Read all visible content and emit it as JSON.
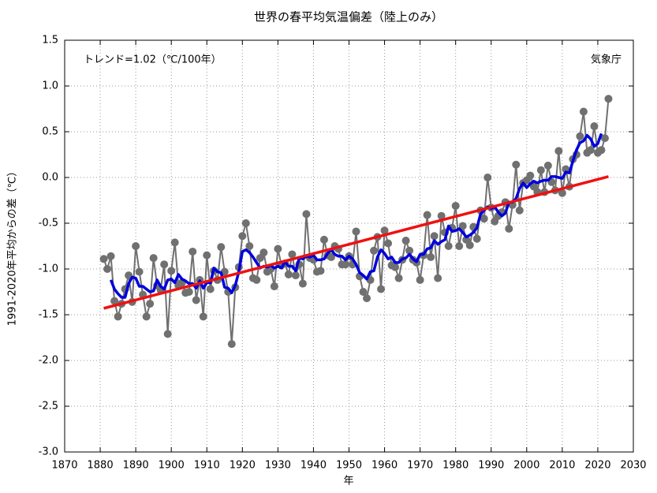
{
  "chart_data": {
    "type": "line",
    "title": "世界の春平均気温偏差（陸上のみ）",
    "xlabel": "年",
    "ylabel": "1991-2020年平均からの差（℃）",
    "annotations": [
      "トレンド=1.02（℃/100年）",
      "気象庁"
    ],
    "x": [
      1881,
      1882,
      1883,
      1884,
      1885,
      1886,
      1887,
      1888,
      1889,
      1890,
      1891,
      1892,
      1893,
      1894,
      1895,
      1896,
      1897,
      1898,
      1899,
      1900,
      1901,
      1902,
      1903,
      1904,
      1905,
      1906,
      1907,
      1908,
      1909,
      1910,
      1911,
      1912,
      1913,
      1914,
      1915,
      1916,
      1917,
      1918,
      1919,
      1920,
      1921,
      1922,
      1923,
      1924,
      1925,
      1926,
      1927,
      1928,
      1929,
      1930,
      1931,
      1932,
      1933,
      1934,
      1935,
      1936,
      1937,
      1938,
      1939,
      1940,
      1941,
      1942,
      1943,
      1944,
      1945,
      1946,
      1947,
      1948,
      1949,
      1950,
      1951,
      1952,
      1953,
      1954,
      1955,
      1956,
      1957,
      1958,
      1959,
      1960,
      1961,
      1962,
      1963,
      1964,
      1965,
      1966,
      1967,
      1968,
      1969,
      1970,
      1971,
      1972,
      1973,
      1974,
      1975,
      1976,
      1977,
      1978,
      1979,
      1980,
      1981,
      1982,
      1983,
      1984,
      1985,
      1986,
      1987,
      1988,
      1989,
      1990,
      1991,
      1992,
      1993,
      1994,
      1995,
      1996,
      1997,
      1998,
      1999,
      2000,
      2001,
      2002,
      2003,
      2004,
      2005,
      2006,
      2007,
      2008,
      2009,
      2010,
      2011,
      2012,
      2013,
      2014,
      2015,
      2016,
      2017,
      2018,
      2019,
      2020,
      2021,
      2022,
      2023
    ],
    "series": [
      {
        "color": "#707070",
        "markers": true,
        "values": [
          -0.89,
          -1.0,
          -0.86,
          -1.35,
          -1.52,
          -1.38,
          -1.22,
          -1.07,
          -1.36,
          -0.75,
          -1.03,
          -1.28,
          -1.52,
          -1.38,
          -0.88,
          -1.18,
          -1.23,
          -0.95,
          -1.71,
          -1.02,
          -0.71,
          -1.18,
          -1.15,
          -1.26,
          -1.25,
          -0.81,
          -1.34,
          -1.12,
          -1.52,
          -0.85,
          -1.22,
          -1.02,
          -1.12,
          -0.76,
          -1.03,
          -1.25,
          -1.82,
          -1.2,
          -0.98,
          -0.64,
          -0.5,
          -0.75,
          -1.1,
          -1.12,
          -0.88,
          -0.82,
          -1.03,
          -1.0,
          -1.19,
          -0.78,
          -0.96,
          -0.94,
          -1.06,
          -0.84,
          -1.07,
          -0.95,
          -1.16,
          -0.4,
          -0.88,
          -0.9,
          -1.03,
          -1.02,
          -0.68,
          -0.85,
          -0.87,
          -0.75,
          -0.78,
          -0.95,
          -0.95,
          -0.86,
          -0.95,
          -0.59,
          -1.08,
          -1.25,
          -1.32,
          -1.12,
          -0.8,
          -0.65,
          -1.22,
          -0.58,
          -0.72,
          -0.96,
          -0.98,
          -1.1,
          -0.9,
          -0.69,
          -0.8,
          -0.9,
          -0.93,
          -1.12,
          -0.85,
          -0.41,
          -0.87,
          -0.64,
          -1.1,
          -0.42,
          -0.6,
          -0.75,
          -0.55,
          -0.31,
          -0.75,
          -0.53,
          -0.68,
          -0.74,
          -0.54,
          -0.67,
          -0.36,
          -0.45,
          0.0,
          -0.33,
          -0.48,
          -0.42,
          -0.38,
          -0.27,
          -0.56,
          -0.3,
          0.14,
          -0.36,
          -0.06,
          -0.03,
          0.02,
          -0.1,
          -0.16,
          0.08,
          -0.16,
          0.13,
          -0.05,
          -0.14,
          0.29,
          -0.17,
          0.09,
          -0.1,
          0.2,
          0.25,
          0.45,
          0.72,
          0.27,
          0.3,
          0.56,
          0.27,
          0.3,
          0.43,
          0.86
        ]
      },
      {
        "color": "#0000dd",
        "markers": false,
        "values": [
          null,
          null,
          -1.12,
          -1.22,
          -1.27,
          -1.31,
          -1.31,
          -1.16,
          -1.09,
          -1.1,
          -1.19,
          -1.19,
          -1.22,
          -1.25,
          -1.24,
          -1.12,
          -1.19,
          -1.22,
          -1.12,
          -1.11,
          -1.15,
          -1.06,
          -1.11,
          -1.13,
          -1.16,
          -1.16,
          -1.21,
          -1.13,
          -1.21,
          -1.15,
          -1.15,
          -0.99,
          -1.03,
          -1.04,
          -1.2,
          -1.21,
          -1.26,
          -1.18,
          -1.03,
          -0.81,
          -0.79,
          -0.82,
          -0.87,
          -0.93,
          -0.99,
          -0.97,
          -0.98,
          -0.96,
          -0.99,
          -0.97,
          -0.99,
          -0.92,
          -0.97,
          -0.97,
          -1.02,
          -0.88,
          -0.89,
          -0.86,
          -0.87,
          -0.85,
          -0.9,
          -0.9,
          -0.89,
          -0.83,
          -0.79,
          -0.84,
          -0.86,
          -0.86,
          -0.9,
          -0.86,
          -0.89,
          -0.95,
          -1.04,
          -1.07,
          -1.11,
          -1.03,
          -1.02,
          -0.87,
          -0.79,
          -0.83,
          -0.89,
          -0.87,
          -0.93,
          -0.93,
          -0.89,
          -0.88,
          -0.84,
          -0.89,
          -0.92,
          -0.84,
          -0.84,
          -0.78,
          -0.77,
          -0.69,
          -0.73,
          -0.7,
          -0.68,
          -0.53,
          -0.59,
          -0.58,
          -0.56,
          -0.6,
          -0.65,
          -0.63,
          -0.6,
          -0.55,
          -0.4,
          -0.36,
          -0.32,
          -0.34,
          -0.32,
          -0.38,
          -0.42,
          -0.39,
          -0.27,
          -0.27,
          -0.23,
          -0.12,
          -0.06,
          -0.11,
          -0.07,
          -0.04,
          -0.06,
          -0.04,
          -0.03,
          -0.03,
          0.01,
          0.01,
          0.0,
          -0.01,
          0.06,
          0.05,
          0.18,
          0.3,
          0.38,
          0.4,
          0.46,
          0.42,
          0.34,
          0.37,
          0.48,
          null,
          null
        ]
      }
    ],
    "trend": {
      "color": "#ee1111",
      "x": [
        1881,
        2023
      ],
      "values": [
        -1.43,
        0.01
      ]
    },
    "xlim": [
      1870,
      2030
    ],
    "xticks": [
      1870,
      1880,
      1890,
      1900,
      1910,
      1920,
      1930,
      1940,
      1950,
      1960,
      1970,
      1980,
      1990,
      2000,
      2010,
      2020,
      2030
    ],
    "ylim": [
      -3.0,
      1.5
    ],
    "yticks": [
      1.5,
      {
        "value": 1,
        "label": "1.0"
      },
      0.5,
      {
        "value": 0,
        "label": "0.0"
      },
      -0.5,
      {
        "value": -1,
        "label": "-1.0"
      },
      -1.5,
      {
        "value": -2,
        "label": "-2.0"
      },
      -2.5,
      {
        "value": -3,
        "label": "-3.0"
      }
    ],
    "grid": true
  }
}
